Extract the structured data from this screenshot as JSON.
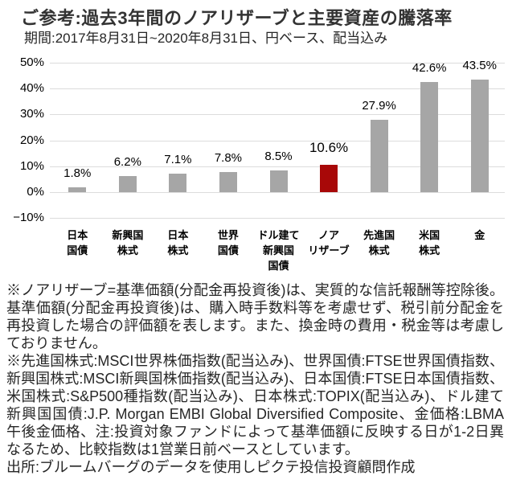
{
  "header": {
    "title": "ご参考:過去3年間のノアリザーブと主要資産の騰落率",
    "subtitle": "期間:2017年8月31日~2020年8月31日、円ベース、配当込み"
  },
  "chart_data": {
    "type": "bar",
    "title": "ご参考:過去3年間のノアリザーブと主要資産の騰落率",
    "subtitle": "期間:2017年8月31日~2020年8月31日、円ベース、配当込み",
    "categories": [
      "日本\n国債",
      "新興国\n株式",
      "日本\n株式",
      "世界\n国債",
      "ドル建て\n新興国\n国債",
      "ノア\nリザーブ",
      "先進国\n株式",
      "米国\n株式",
      "金"
    ],
    "values": [
      1.8,
      6.2,
      7.1,
      7.8,
      8.5,
      10.6,
      27.9,
      42.6,
      43.5
    ],
    "value_labels": [
      "1.8%",
      "6.2%",
      "7.1%",
      "7.8%",
      "8.5%",
      "10.6%",
      "27.9%",
      "42.6%",
      "43.5%"
    ],
    "highlight_index": 5,
    "highlight_series": "ノアリザーブ",
    "bar_color": "#A6A6A6",
    "highlight_color": "#A80808",
    "gridline_color": "#DCDCDC",
    "xlabel": "",
    "ylabel": "",
    "ylim": [
      -10,
      50
    ],
    "ytick_values": [
      50,
      40,
      30,
      20,
      10,
      0,
      -10
    ],
    "ytick_labels": [
      "50%",
      "40%",
      "30%",
      "20%",
      "10%",
      "0%",
      "−10%"
    ],
    "grid": "horizontal",
    "legend_position": "none"
  },
  "footnotes": [
    "※ノアリザーブ=基準価額(分配金再投資後)は、実質的な信託報酬等控除後。基準価額(分配金再投資後)は、購入時手数料等を考慮せず、税引前分配金を再投資した場合の評価額を表します。また、換金時の費用・税金等は考慮しておりません。",
    "※先進国株式:MSCI世界株価指数(配当込み)、世界国債:FTSE世界国債指数、新興国株式:MSCI新興国株価指数(配当込み)、日本国債:FTSE日本国債指数、米国株式:S&P500種指数(配当込み)、日本株式:TOPIX(配当込み)、ドル建て新興国国債:J.P. Morgan EMBI Global Diversified Composite、金価格:LBMA午後金価格、注:投資対象ファンドによって基準価額に反映する日が1-2日異なるため、比較指数は1営業日前ベースとしています。",
    "出所:ブルームバーグのデータを使用しピクテ投信投資顧問作成"
  ]
}
